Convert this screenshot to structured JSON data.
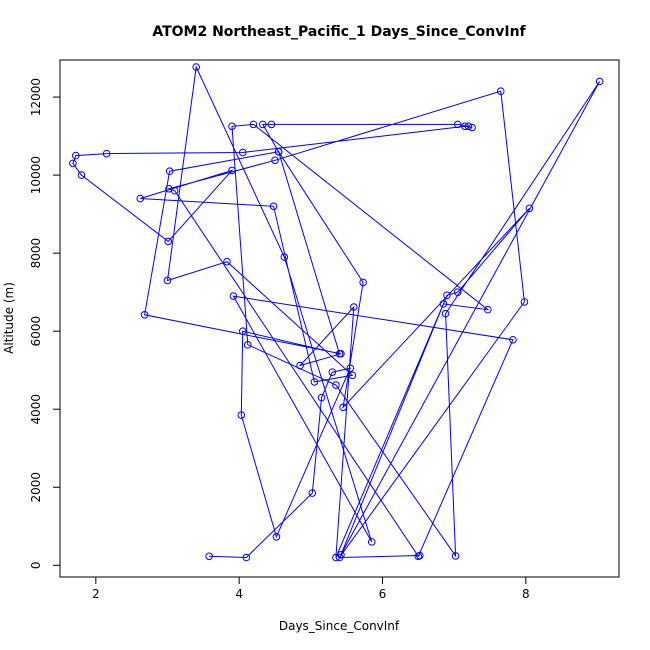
{
  "chart_data": {
    "type": "line",
    "title": "ATOM2 Northeast_Pacific_1 Days_Since_ConvInf",
    "xlabel": "Days_Since_ConvInf",
    "ylabel": "Altitude (m)",
    "xlim": [
      1.5,
      9.3
    ],
    "ylim": [
      -300,
      12950
    ],
    "xticks": [
      2,
      4,
      6,
      8
    ],
    "xtick_labels": [
      "2",
      "4",
      "6",
      "8"
    ],
    "yticks": [
      0,
      2000,
      4000,
      6000,
      8000,
      10000,
      12000
    ],
    "ytick_labels": [
      "0",
      "2000",
      "4000",
      "6000",
      "8000",
      "10000",
      "12000"
    ],
    "grid": false,
    "markers": "open-circle",
    "color": "#0000ff",
    "series": [
      {
        "name": "",
        "x": [
          3.58,
          4.1,
          5.02,
          5.15,
          5.3,
          5.55,
          4.52,
          4.03,
          4.05,
          5.4,
          4.55,
          3.03,
          2.68,
          5.42,
          4.85,
          5.6,
          5.35,
          6.85,
          7.47,
          4.2,
          3.9,
          4.12,
          5.35,
          7.02,
          6.88,
          9.03,
          5.42,
          6.9,
          7.05,
          8.05,
          5.45,
          5.73,
          4.55,
          4.33,
          4.45,
          7.05,
          7.2,
          7.25,
          7.15,
          4.05,
          2.15,
          1.72,
          1.68,
          1.8,
          3.01,
          3.9,
          2.62,
          4.48,
          5.05,
          5.58,
          3.83,
          3.0,
          3.4,
          4.63,
          5.85,
          3.92,
          7.82,
          6.5,
          3.1,
          3.02,
          4.5,
          7.65,
          7.98,
          5.4,
          6.52
        ],
        "y": [
          230,
          200,
          1850,
          4300,
          4950,
          5050,
          730,
          3850,
          6000,
          5420,
          10600,
          10100,
          6420,
          5420,
          5120,
          6620,
          200,
          6700,
          6550,
          11300,
          11250,
          5650,
          4620,
          240,
          6450,
          12400,
          270,
          6920,
          7000,
          9150,
          4050,
          7250,
          10600,
          11300,
          11300,
          11300,
          11250,
          11220,
          11250,
          10580,
          10550,
          10500,
          10300,
          10000,
          8300,
          10120,
          9400,
          9200,
          4700,
          4870,
          7780,
          7300,
          12770,
          7900,
          600,
          6900,
          5780,
          230,
          9600,
          9650,
          10380,
          12150,
          6750,
          200,
          250
        ]
      }
    ]
  }
}
